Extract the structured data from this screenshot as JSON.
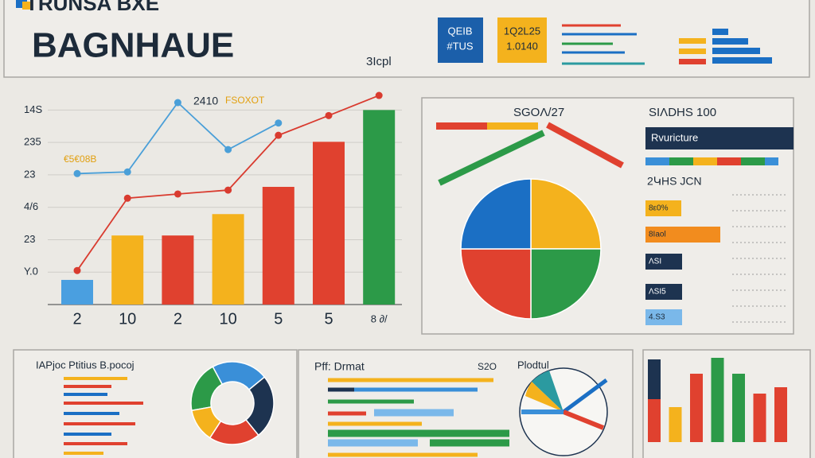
{
  "header": {
    "brand": "TRUNSA BXE",
    "title": "BAGNHAUE",
    "subtitle": "3Icpl",
    "tiles": [
      [
        "QEIB",
        "#TUS"
      ],
      [
        "1Q2L25",
        "1.0140"
      ]
    ]
  },
  "side_panel": {
    "title": "SIΛDHS 100",
    "banner": "Rvuricture",
    "subtitle": "2ԿHS JCN",
    "items": [
      "8ε0%",
      "8Iaol",
      "ΛSI",
      "ΛSI5",
      "4.S3"
    ]
  },
  "middle_panel": {
    "title": "Pff: Drmat",
    "note": "S2O",
    "pie_title": "Plodtul"
  },
  "chart_data": [
    {
      "type": "bar",
      "annotations": [
        "2410",
        "FSOXOT",
        "€5€08B"
      ],
      "categories": [
        "2",
        "10",
        "2",
        "10",
        "5",
        "5",
        "8 ∂/"
      ],
      "values": [
        0.76,
        2.13,
        2.13,
        2.79,
        3.63,
        5.02,
        6.0
      ],
      "colors": [
        "#4a9fe0",
        "#f4b21d",
        "#e0412f",
        "#f4b21d",
        "#e0412f",
        "#e0412f",
        "#2c9a48"
      ],
      "ylim": [
        0,
        6.5
      ],
      "yticks": [
        {
          "value": 1,
          "label": "Y.0"
        },
        {
          "value": 2,
          "label": "23"
        },
        {
          "value": 3,
          "label": "4/6"
        },
        {
          "value": 4,
          "label": "23"
        },
        {
          "value": 5,
          "label": "235"
        },
        {
          "value": 6,
          "label": "14S"
        }
      ],
      "grid": true,
      "series": [
        {
          "type": "line",
          "color": "#d93b2f",
          "values": [
            1.05,
            3.28,
            3.41,
            3.53,
            5.22,
            5.83,
            6.45
          ]
        },
        {
          "type": "line",
          "color": "#4a9fd8",
          "values": [
            4.04,
            4.09,
            6.23,
            4.78,
            5.6,
            null,
            null
          ]
        }
      ]
    },
    {
      "type": "pie",
      "title": "SGOΛ/27",
      "values": [
        25,
        25,
        25,
        25
      ],
      "colors": [
        "#f4b21d",
        "#2c9a48",
        "#e0412f",
        "#1b6fc4"
      ]
    },
    {
      "type": "donut",
      "title": "IAPjoc Ptitius B.pocoj",
      "values": [
        20,
        22,
        25,
        20,
        13
      ],
      "colors": [
        "#2c9a48",
        "#3a8fd8",
        "#1d3350",
        "#e0412f",
        "#f4b21d"
      ]
    },
    {
      "type": "stacked-bar",
      "ylim": [
        0,
        110
      ],
      "series": [
        {
          "colors": [
            "#e0412f",
            "#f4b21d",
            "#e0412f",
            "#2c9a48",
            "#2c9a48",
            "#e0412f",
            "#e0412f"
          ],
          "values": [
            54,
            44,
            86,
            106,
            86,
            61,
            69
          ]
        },
        {
          "color": "#1d3350",
          "values": [
            50,
            null,
            null,
            null,
            null,
            null,
            null
          ]
        }
      ]
    }
  ]
}
